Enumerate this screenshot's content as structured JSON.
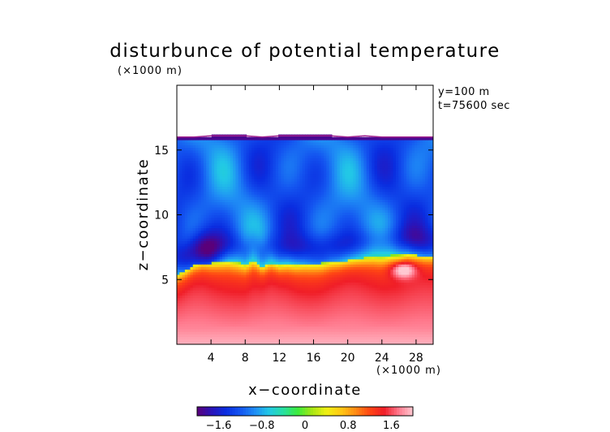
{
  "chart_data": {
    "type": "heatmap",
    "title": "disturbunce of potential temperature",
    "z_unit_label": "(×1000 m)",
    "x_unit_label": "(×1000 m)",
    "xlabel": "x−coordinate",
    "ylabel": "z−coordinate",
    "annotations": [
      "y=100 m",
      "t=75600 sec"
    ],
    "xlim": [
      0,
      30
    ],
    "ylim": [
      0,
      20
    ],
    "x_ticks": [
      4,
      8,
      12,
      16,
      20,
      24,
      28
    ],
    "x_tick_labels": [
      "4",
      "8",
      "12",
      "16",
      "20",
      "24",
      "28"
    ],
    "y_ticks": [
      5,
      10,
      15
    ],
    "y_tick_labels": [
      "5",
      "10",
      "15"
    ],
    "colorbar": {
      "range": [
        -2.0,
        2.0
      ],
      "ticks": [
        -1.6,
        -0.8,
        0,
        0.8,
        1.6
      ],
      "tick_labels": [
        "−1.6",
        "−0.8",
        "0",
        "0.8",
        "1.6"
      ],
      "colors": [
        "#5a007a",
        "#2a14b8",
        "#0a2de0",
        "#1455f0",
        "#1f8cf5",
        "#22c8e6",
        "#28e0a0",
        "#3ceb3c",
        "#a8e614",
        "#f0f014",
        "#ffc814",
        "#ff8c14",
        "#ff4614",
        "#f01e28",
        "#ff788c",
        "#ffc8d2"
      ]
    },
    "field": {
      "top_of_domain_z": [
        16.0,
        16.0,
        16.1,
        16.1,
        16.1,
        16.0,
        16.1,
        16.1,
        16.1,
        16.1,
        16.0,
        16.1,
        16.0,
        16.0,
        16.0,
        16.0
      ],
      "top_of_domain_x": [
        0,
        2,
        4,
        6,
        8,
        10,
        12,
        14,
        16,
        18,
        20,
        22,
        24,
        26,
        28,
        30
      ],
      "inversion_x": [
        0,
        1,
        2,
        3,
        4,
        5,
        6,
        7,
        8,
        9,
        10,
        11,
        12,
        13,
        14,
        15,
        16,
        17,
        18,
        19,
        20,
        21,
        22,
        23,
        24,
        25,
        26,
        27,
        28,
        29,
        30
      ],
      "inversion_z": [
        5.4,
        5.7,
        6.1,
        6.3,
        6.3,
        6.4,
        6.5,
        6.4,
        6.2,
        6.5,
        6.0,
        6.3,
        6.1,
        6.2,
        6.2,
        6.3,
        6.3,
        6.3,
        6.4,
        6.4,
        6.5,
        6.6,
        6.7,
        6.8,
        6.8,
        6.9,
        6.9,
        7.0,
        6.9,
        6.8,
        6.8
      ],
      "upper_layer_value": -1.15,
      "lower_layer_surface_value": 1.75,
      "max_anomaly": {
        "x": 26.5,
        "z": 5.8,
        "value": 1.8
      },
      "min_anomaly": {
        "x": 3.5,
        "z": 7.2,
        "value": -1.7
      }
    }
  }
}
